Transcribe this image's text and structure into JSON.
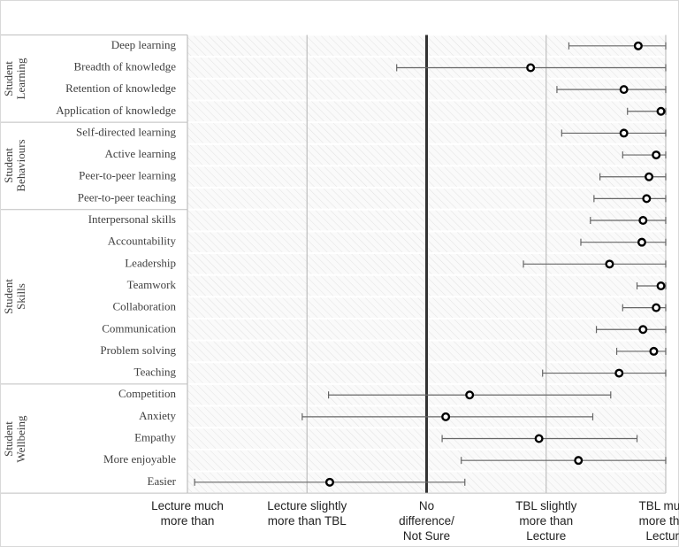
{
  "chart_data": {
    "type": "dot-range",
    "categories": [
      "Deep learning",
      "Breadth of knowledge",
      "Retention of knowledge",
      "Application of knowledge",
      "Self-directed learning",
      "Active learning",
      "Peer-to-peer learning",
      "Peer-to-peer teaching",
      "Interpersonal skills",
      "Accountability",
      "Leadership",
      "Teamwork",
      "Collaboration",
      "Communication",
      "Problem solving",
      "Teaching",
      "Competition",
      "Anxiety",
      "Empathy",
      "More enjoyable",
      "Easier"
    ],
    "groups": [
      {
        "label": "Student\nLearning",
        "size": 4
      },
      {
        "label": "Student\nBehaviours",
        "size": 4
      },
      {
        "label": "Student\nSkills",
        "size": 8
      },
      {
        "label": "Student\nWellbeing",
        "size": 5
      }
    ],
    "values": [
      1.77,
      0.87,
      1.65,
      1.96,
      1.65,
      1.92,
      1.86,
      1.84,
      1.81,
      1.8,
      1.53,
      1.96,
      1.92,
      1.81,
      1.9,
      1.61,
      0.36,
      0.16,
      0.94,
      1.27,
      -0.81
    ],
    "low": [
      1.19,
      -0.25,
      1.09,
      1.68,
      1.13,
      1.64,
      1.45,
      1.4,
      1.37,
      1.29,
      0.81,
      1.76,
      1.64,
      1.42,
      1.59,
      0.97,
      -0.82,
      -1.04,
      0.13,
      0.29,
      -1.94
    ],
    "high": [
      2,
      2,
      2,
      2,
      2,
      2,
      2,
      2,
      2,
      2,
      2,
      2,
      2,
      2,
      2,
      2,
      1.54,
      1.39,
      1.76,
      2,
      0.32
    ],
    "xlim": [
      -2,
      2
    ],
    "xticks": [
      {
        "value": -2,
        "label": "Lecture much\nmore than"
      },
      {
        "value": -1,
        "label": "Lecture slightly\nmore than TBL"
      },
      {
        "value": 0,
        "label": "No\ndifference/\nNot Sure"
      },
      {
        "value": 1,
        "label": "TBL slightly\nmore than\nLecture"
      },
      {
        "value": 2,
        "label": "TBL much\nmore than\nLecture"
      }
    ],
    "grid": true,
    "color": "#000000",
    "range_color": "#666666"
  }
}
